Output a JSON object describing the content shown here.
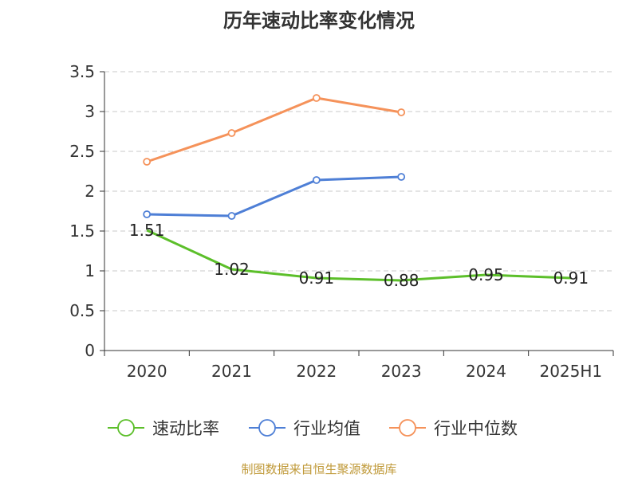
{
  "chart_data": {
    "type": "line",
    "title": "历年速动比率变化情况",
    "categories": [
      "2020",
      "2021",
      "2022",
      "2023",
      "2024",
      "2025H1"
    ],
    "ylim": [
      0,
      3.5
    ],
    "yticks": [
      "0",
      "0.5",
      "1",
      "1.5",
      "2",
      "2.5",
      "3",
      "3.5"
    ],
    "grid": true,
    "legend_position": "bottom",
    "series": [
      {
        "name": "速动比率",
        "color": "#5cbf2a",
        "values": [
          1.51,
          1.02,
          0.91,
          0.88,
          0.95,
          0.91
        ],
        "labels": [
          "1.51",
          "1.02",
          "0.91",
          "0.88",
          "0.95",
          "0.91"
        ]
      },
      {
        "name": "行业均值",
        "color": "#4e7fd6",
        "values": [
          1.71,
          1.69,
          2.14,
          2.18,
          null,
          null
        ]
      },
      {
        "name": "行业中位数",
        "color": "#f5925a",
        "values": [
          2.37,
          2.73,
          3.17,
          2.99,
          null,
          null
        ]
      }
    ]
  },
  "source": "制图数据来自恒生聚源数据库"
}
